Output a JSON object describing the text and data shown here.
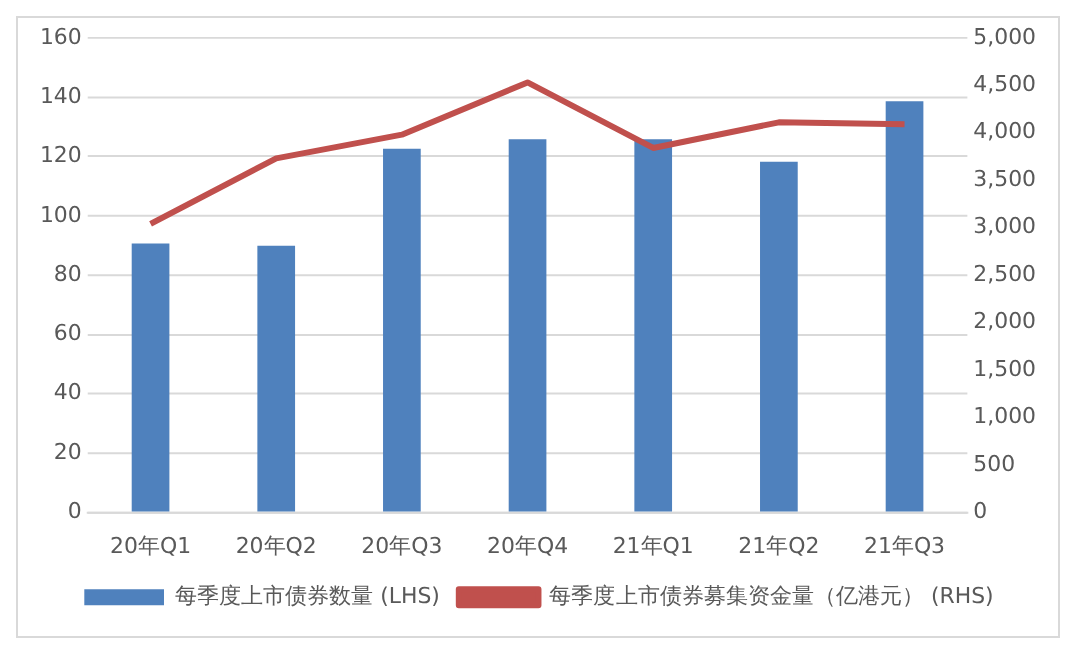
{
  "chart_data": {
    "type": "bar",
    "categories": [
      "20年Q1",
      "20年Q2",
      "20年Q3",
      "20年Q4",
      "21年Q1",
      "21年Q2",
      "21年Q3"
    ],
    "series": [
      {
        "name": "每季度上市债券数量 (LHS)",
        "color": "#4f81bd",
        "values": [
          90.7,
          89.9,
          122.6,
          125.8,
          125.8,
          118.2,
          138.6
        ]
      },
      {
        "name": "每季度上市债券募集资金量（亿港元） (RHS)",
        "type": "line",
        "axis": "y2",
        "color": "#c0504d",
        "values": [
          3040,
          3730,
          3980,
          4530,
          3840,
          4110,
          4090
        ]
      }
    ],
    "ylim": [
      0,
      160
    ],
    "yticks": [
      0,
      20,
      40,
      60,
      80,
      100,
      120,
      140,
      160
    ],
    "y2lim": [
      0,
      5000
    ],
    "y2ticks": [
      {
        "value": 0,
        "label": "0"
      },
      {
        "value": 500,
        "label": "500"
      },
      {
        "value": 1000,
        "label": "1,000"
      },
      {
        "value": 1500,
        "label": "1,500"
      },
      {
        "value": 2000,
        "label": "2,000"
      },
      {
        "value": 2500,
        "label": "2,500"
      },
      {
        "value": 3000,
        "label": "3,000"
      },
      {
        "value": 3500,
        "label": "3,500"
      },
      {
        "value": 4000,
        "label": "4,000"
      },
      {
        "value": 4500,
        "label": "4,500"
      },
      {
        "value": 5000,
        "label": "5,000"
      }
    ],
    "grid": "y",
    "legend": "bottom",
    "marker": "none",
    "line_style": "solid"
  }
}
